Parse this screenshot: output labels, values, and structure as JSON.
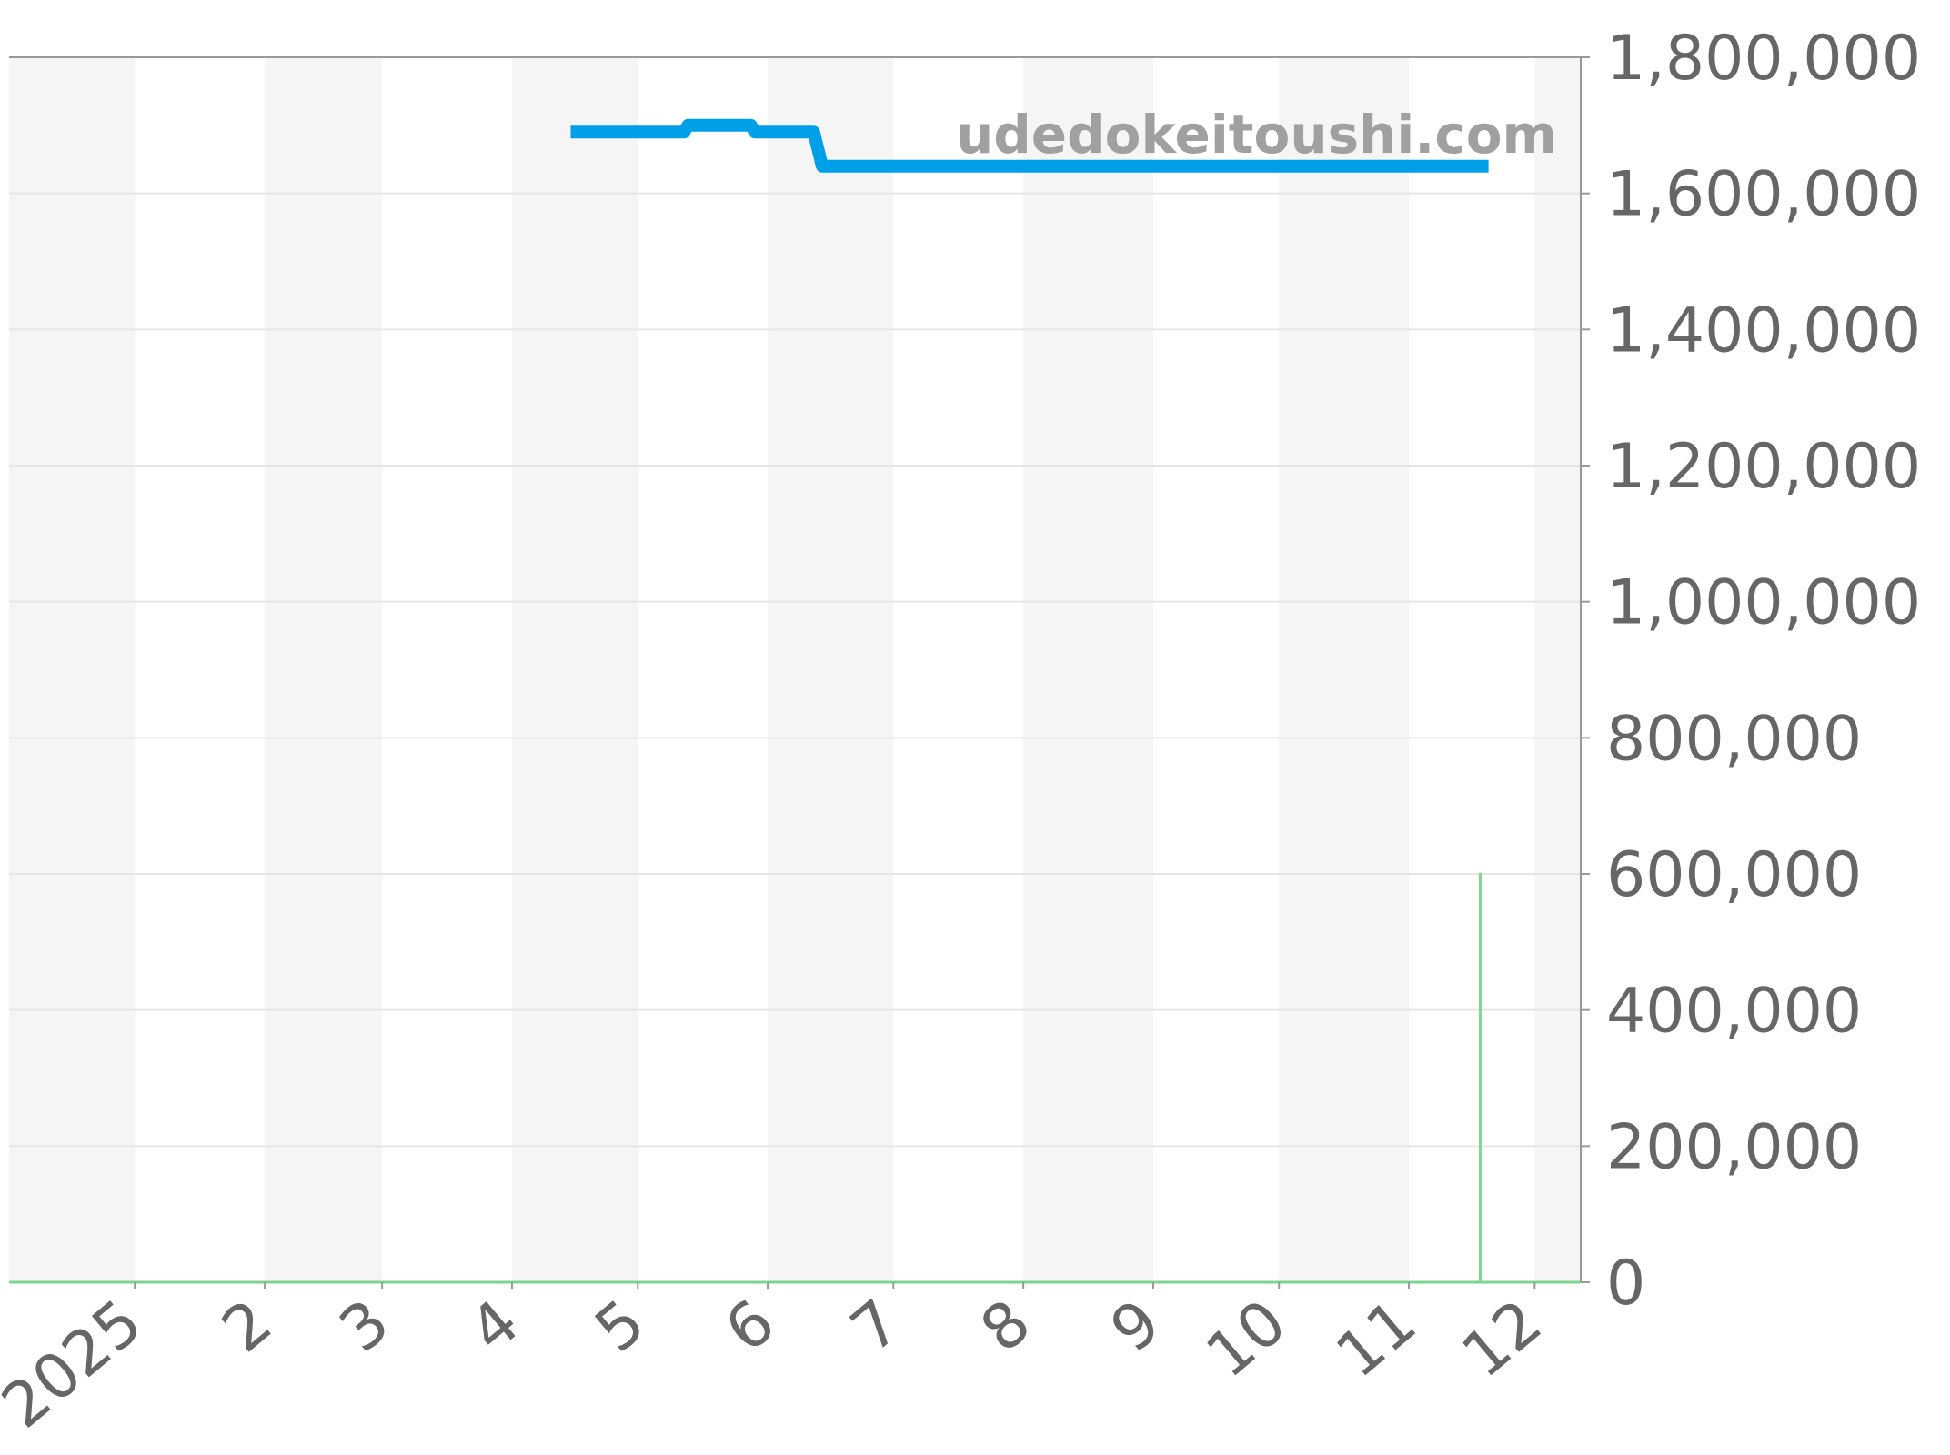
{
  "chart_data": {
    "type": "line",
    "watermark": "udedokeitoushi.com",
    "xlim": [
      "2024-12-02",
      "2025-12-12"
    ],
    "ylim": [
      0,
      1800000
    ],
    "grid": true,
    "x_ticks": [
      {
        "date": "2025-01-01",
        "label": "2025"
      },
      {
        "date": "2025-02-01",
        "label": "2"
      },
      {
        "date": "2025-03-01",
        "label": "3"
      },
      {
        "date": "2025-04-01",
        "label": "4"
      },
      {
        "date": "2025-05-01",
        "label": "5"
      },
      {
        "date": "2025-06-01",
        "label": "6"
      },
      {
        "date": "2025-07-01",
        "label": "7"
      },
      {
        "date": "2025-08-01",
        "label": "8"
      },
      {
        "date": "2025-09-01",
        "label": "9"
      },
      {
        "date": "2025-10-01",
        "label": "10"
      },
      {
        "date": "2025-11-01",
        "label": "11"
      },
      {
        "date": "2025-12-01",
        "label": "12"
      }
    ],
    "y_ticks": [
      {
        "value": 0,
        "label": "0"
      },
      {
        "value": 200000,
        "label": "200,000"
      },
      {
        "value": 400000,
        "label": "400,000"
      },
      {
        "value": 600000,
        "label": "600,000"
      },
      {
        "value": 800000,
        "label": "800,000"
      },
      {
        "value": 1000000,
        "label": "1,000,000"
      },
      {
        "value": 1200000,
        "label": "1,200,000"
      },
      {
        "value": 1400000,
        "label": "1,400,000"
      },
      {
        "value": 1600000,
        "label": "1,600,000"
      },
      {
        "value": 1800000,
        "label": "1,800,000"
      }
    ],
    "y_axis_side": "right",
    "series": [
      {
        "color": "#00a0e9",
        "points": [
          [
            "2025-04-15",
            1690000
          ],
          [
            "2025-05-12",
            1690000
          ],
          [
            "2025-05-13",
            1700000
          ],
          [
            "2025-05-28",
            1700000
          ],
          [
            "2025-05-29",
            1690000
          ],
          [
            "2025-06-12",
            1690000
          ],
          [
            "2025-06-14",
            1640000
          ],
          [
            "2025-11-20",
            1640000
          ]
        ]
      },
      {
        "color": "#7fd48f",
        "points": [
          [
            "2024-12-02",
            0
          ],
          [
            "2025-11-18",
            0
          ],
          [
            "2025-11-18",
            600000
          ],
          [
            "2025-11-18",
            0
          ],
          [
            "2025-12-12",
            0
          ]
        ]
      }
    ]
  }
}
